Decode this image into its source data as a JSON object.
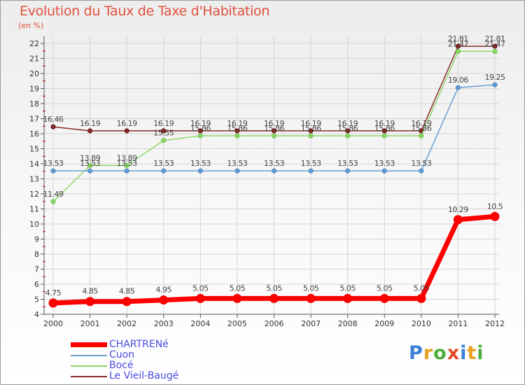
{
  "title": "Evolution du Taux de Taxe d'Habitation",
  "subtitle": "(en %)",
  "logo": {
    "text": "Proxiti",
    "letter_colors": [
      "#3b7fd6",
      "#e8a020",
      "#4cae3c",
      "#e04a28",
      "#3b7fd6",
      "#e8a020",
      "#4cae3c"
    ]
  },
  "chart_data": {
    "type": "line",
    "x": [
      "2000",
      "2001",
      "2002",
      "2003",
      "2004",
      "2005",
      "2006",
      "2007",
      "2008",
      "2009",
      "2010",
      "2011",
      "2012"
    ],
    "ylim": [
      4,
      22
    ],
    "yticks": [
      4,
      5,
      6,
      7,
      8,
      9,
      10,
      11,
      12,
      13,
      14,
      15,
      16,
      17,
      18,
      19,
      20,
      21,
      22
    ],
    "ylabel": "(en %)",
    "grid": true,
    "legend_position": "bottom-left",
    "series": [
      {
        "name": "CHARTRENé",
        "color": "#ff0000",
        "marker": "#ee0000",
        "width": "thick",
        "values": [
          4.75,
          4.85,
          4.85,
          4.95,
          5.05,
          5.05,
          5.05,
          5.05,
          5.05,
          5.05,
          5.05,
          10.29,
          10.5
        ],
        "labels": [
          "4.75",
          "4.85",
          "4.85",
          "4.95",
          "5.05",
          "5.05",
          "5.05",
          "5.05",
          "5.05",
          "5.05",
          "5.05",
          "10.29",
          "10.5"
        ]
      },
      {
        "name": "Cuon",
        "color": "#6a9ed0",
        "marker": "#3a80c0",
        "width": "thin",
        "values": [
          13.53,
          13.53,
          13.53,
          13.53,
          13.53,
          13.53,
          13.53,
          13.53,
          13.53,
          13.53,
          13.53,
          19.06,
          19.25
        ],
        "labels": [
          "13.53",
          "13.53",
          "13.53",
          "13.53",
          "13.53",
          "13.53",
          "13.53",
          "13.53",
          "13.53",
          "13.53",
          "13.53",
          "19.06",
          "19.25"
        ]
      },
      {
        "name": "Bocé",
        "color": "#8ed86a",
        "marker": "#66c040",
        "width": "thin",
        "values": [
          11.49,
          13.89,
          13.89,
          15.55,
          15.86,
          15.86,
          15.86,
          15.86,
          15.86,
          15.86,
          15.86,
          21.47,
          21.47
        ],
        "labels": [
          "11.49",
          "13.89",
          "13.89",
          "15.55",
          "15.86",
          "15.86",
          "15.86",
          "15.86",
          "15.86",
          "15.86",
          "15.86",
          "21.47",
          "21.47"
        ]
      },
      {
        "name": "Le Vieil-Baugé",
        "color": "#8a2a2a",
        "marker": "#5a0c0c",
        "width": "thin",
        "values": [
          16.46,
          16.19,
          16.19,
          16.19,
          16.19,
          16.19,
          16.19,
          16.19,
          16.19,
          16.19,
          16.19,
          21.81,
          21.81
        ],
        "labels": [
          "16.46",
          "16.19",
          "16.19",
          "16.19",
          "16.19",
          "16.19",
          "16.19",
          "16.19",
          "16.19",
          "16.19",
          "16.19",
          "21.81",
          "21.81"
        ]
      }
    ]
  }
}
